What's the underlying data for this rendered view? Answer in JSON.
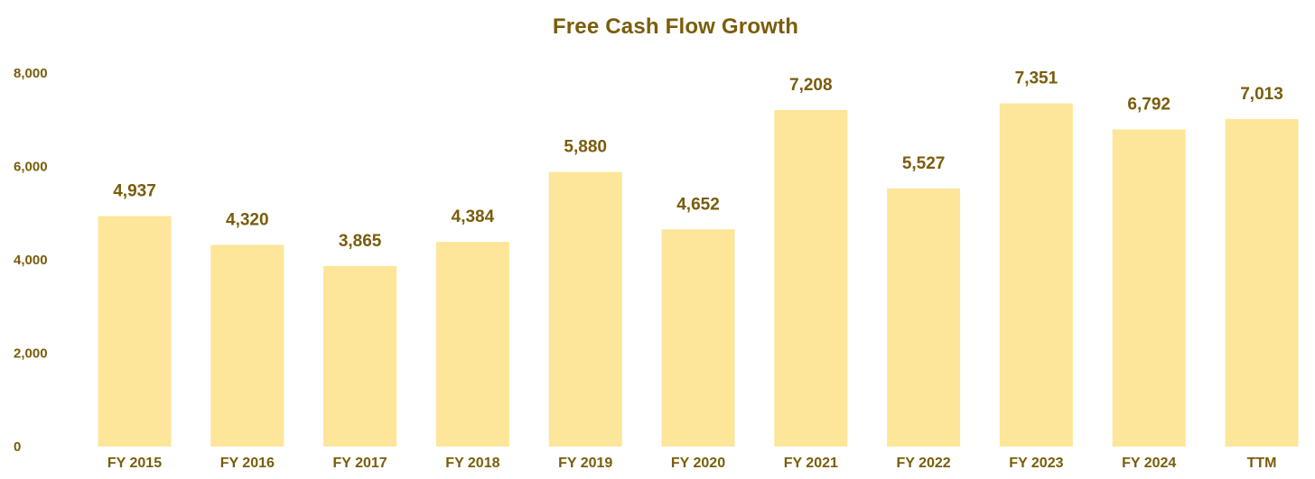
{
  "chart_data": {
    "type": "bar",
    "title": "Free Cash Flow Growth",
    "xlabel": "",
    "ylabel": "",
    "categories": [
      "FY 2015",
      "FY 2016",
      "FY 2017",
      "FY 2018",
      "FY 2019",
      "FY 2020",
      "FY 2021",
      "FY 2022",
      "FY 2023",
      "FY 2024",
      "TTM"
    ],
    "values": [
      4937,
      4320,
      3865,
      4384,
      5880,
      4652,
      7208,
      5527,
      7351,
      6792,
      7013
    ],
    "value_labels": [
      "4,937",
      "4,320",
      "3,865",
      "4,384",
      "5,880",
      "4,652",
      "7,208",
      "5,527",
      "7,351",
      "6,792",
      "7,013"
    ],
    "ylim": [
      0,
      8000
    ],
    "yticks": [
      0,
      2000,
      4000,
      6000,
      8000
    ],
    "ytick_labels": [
      "0",
      "2,000",
      "4,000",
      "6,000",
      "8,000"
    ],
    "grid": false,
    "legend": "none",
    "colors": {
      "bar": "#FDE59A",
      "text": "#7A5C0A"
    }
  }
}
